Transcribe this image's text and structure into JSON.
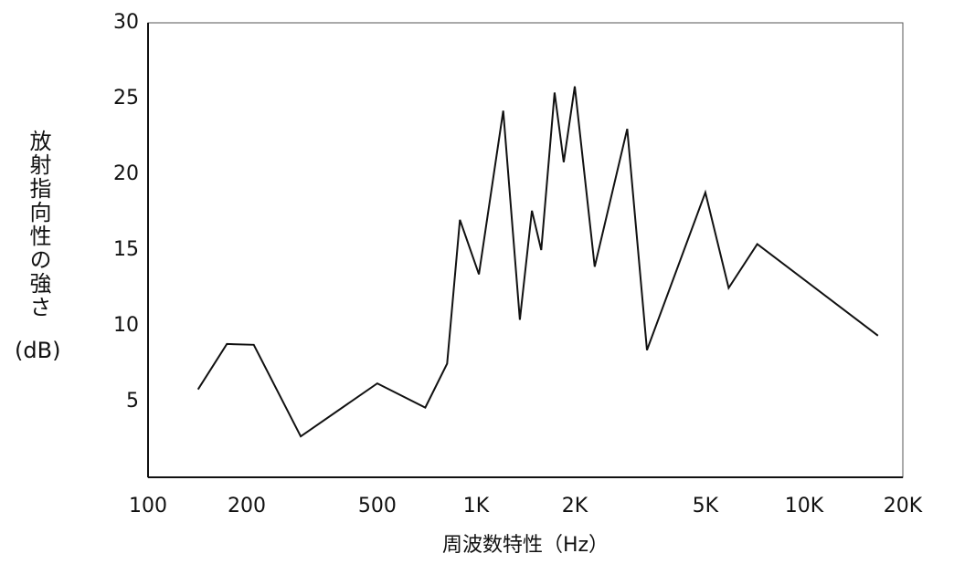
{
  "chart_data": {
    "type": "line",
    "ylabel": "放射指向性の強さ",
    "ylabel_unit": "(dB)",
    "xlabel": "周波数特性（Hz）",
    "x": [
      142,
      174,
      210,
      292,
      500,
      700,
      816,
      893,
      1020,
      1210,
      1360,
      1480,
      1580,
      1735,
      1850,
      2000,
      2300,
      2890,
      3320,
      5000,
      5890,
      7200,
      16800
    ],
    "series": [
      {
        "name": "放射指向性",
        "color": "#111111",
        "values": [
          5.8,
          8.8,
          8.75,
          2.7,
          6.2,
          4.6,
          7.5,
          17.0,
          13.4,
          24.2,
          10.4,
          17.6,
          15.0,
          25.4,
          20.8,
          25.8,
          13.9,
          23.0,
          8.4,
          18.8,
          12.5,
          15.4,
          9.35
        ]
      }
    ],
    "xscale": "log",
    "xlim": [
      100,
      20000
    ],
    "xticks": [
      100,
      200,
      500,
      {
        "value": 1000,
        "label": "1K"
      },
      {
        "value": 2000,
        "label": "2K"
      },
      {
        "value": 5000,
        "label": "5K"
      },
      {
        "value": 10000,
        "label": "10K"
      },
      {
        "value": 20000,
        "label": "20K"
      }
    ],
    "ylim": [
      0,
      30
    ],
    "yticks": [
      5,
      10,
      15,
      20,
      25,
      30
    ],
    "grid": false
  }
}
